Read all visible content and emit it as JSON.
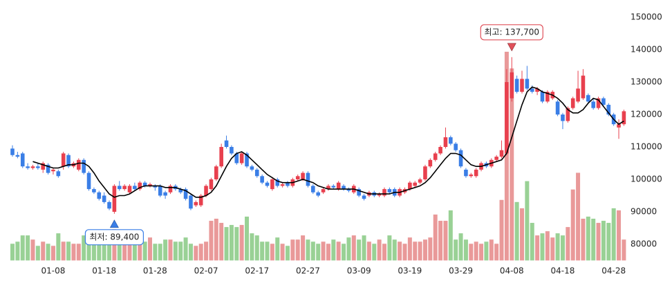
{
  "chart_data": {
    "type": "candlestick",
    "categories": [
      null,
      null,
      null,
      null,
      null,
      null,
      null,
      null,
      "01-08",
      null,
      null,
      null,
      null,
      null,
      null,
      null,
      null,
      null,
      "01-18",
      null,
      null,
      null,
      null,
      null,
      null,
      null,
      null,
      null,
      "01-28",
      null,
      null,
      null,
      null,
      null,
      null,
      null,
      null,
      null,
      "02-07",
      null,
      null,
      null,
      null,
      null,
      null,
      null,
      null,
      null,
      "02-17",
      null,
      null,
      null,
      null,
      null,
      null,
      null,
      null,
      null,
      "02-27",
      null,
      null,
      null,
      null,
      null,
      null,
      null,
      null,
      null,
      "03-09",
      null,
      null,
      null,
      null,
      null,
      null,
      null,
      null,
      null,
      "03-19",
      null,
      null,
      null,
      null,
      null,
      null,
      null,
      null,
      null,
      "03-29",
      null,
      null,
      null,
      null,
      null,
      null,
      null,
      null,
      null,
      "04-08",
      null,
      null,
      null,
      null,
      null,
      null,
      null,
      null,
      null,
      "04-18",
      null,
      null,
      null,
      null,
      null,
      null,
      null,
      null,
      null,
      "04-28",
      null,
      null
    ],
    "ohlc": [
      [
        109500,
        110500,
        107000,
        107500
      ],
      [
        107500,
        108500,
        106500,
        107000
      ],
      [
        108000,
        108500,
        103500,
        104000
      ],
      [
        104000,
        105000,
        103000,
        103500
      ],
      [
        103500,
        104500,
        103000,
        104000
      ],
      [
        104000,
        105000,
        103000,
        103500
      ],
      [
        103000,
        105500,
        102000,
        105000
      ],
      [
        104500,
        105000,
        101500,
        102000
      ],
      [
        102500,
        103500,
        101500,
        103000
      ],
      [
        102500,
        103000,
        100500,
        101000
      ],
      [
        104000,
        108500,
        103000,
        108000
      ],
      [
        107500,
        108000,
        103500,
        104000
      ],
      [
        104000,
        105500,
        103500,
        105000
      ],
      [
        103000,
        106500,
        102500,
        106000
      ],
      [
        106000,
        106500,
        101500,
        102000
      ],
      [
        102000,
        102500,
        96500,
        97000
      ],
      [
        97000,
        97500,
        95500,
        96000
      ],
      [
        96000,
        96500,
        93500,
        94000
      ],
      [
        95000,
        96000,
        92500,
        93000
      ],
      [
        93000,
        93500,
        90500,
        91000
      ],
      [
        90000,
        98500,
        89400,
        98000
      ],
      [
        98000,
        99500,
        96500,
        97000
      ],
      [
        97000,
        98500,
        96500,
        98000
      ],
      [
        96000,
        98500,
        95500,
        98000
      ],
      [
        98000,
        99000,
        96500,
        97000
      ],
      [
        97000,
        99500,
        96500,
        99000
      ],
      [
        99000,
        99500,
        97500,
        98000
      ],
      [
        98000,
        99000,
        97500,
        98500
      ],
      [
        98000,
        98500,
        96500,
        97500
      ],
      [
        98000,
        98500,
        94500,
        95000
      ],
      [
        96000,
        96500,
        94000,
        95000
      ],
      [
        96000,
        98500,
        95500,
        98000
      ],
      [
        98000,
        98500,
        96500,
        97000
      ],
      [
        97000,
        97500,
        95500,
        96000
      ],
      [
        97000,
        97500,
        93500,
        94000
      ],
      [
        95000,
        95500,
        90500,
        91000
      ],
      [
        92000,
        93500,
        91500,
        93000
      ],
      [
        92000,
        95500,
        91500,
        95000
      ],
      [
        95000,
        98500,
        94500,
        98000
      ],
      [
        97000,
        100500,
        96500,
        100000
      ],
      [
        100000,
        104500,
        99500,
        104000
      ],
      [
        104000,
        111000,
        103500,
        110000
      ],
      [
        112000,
        113500,
        109500,
        110000
      ],
      [
        110000,
        110500,
        107500,
        108000
      ],
      [
        108000,
        108500,
        104500,
        105000
      ],
      [
        105000,
        108500,
        104500,
        108000
      ],
      [
        108000,
        108500,
        103500,
        104000
      ],
      [
        104000,
        104500,
        102500,
        103000
      ],
      [
        103000,
        103500,
        100500,
        101000
      ],
      [
        101000,
        101500,
        98500,
        99000
      ],
      [
        99000,
        99500,
        97500,
        98000
      ],
      [
        97000,
        100500,
        96500,
        100000
      ],
      [
        100000,
        100500,
        97500,
        98000
      ],
      [
        98000,
        99000,
        97500,
        98500
      ],
      [
        99000,
        99500,
        97500,
        98000
      ],
      [
        98000,
        100500,
        97500,
        100000
      ],
      [
        100000,
        101500,
        99500,
        101000
      ],
      [
        100000,
        102500,
        99500,
        102000
      ],
      [
        102000,
        102500,
        97500,
        98000
      ],
      [
        98000,
        98500,
        95500,
        96000
      ],
      [
        96000,
        96500,
        94500,
        95000
      ],
      [
        96000,
        97500,
        95500,
        97000
      ],
      [
        97000,
        98500,
        96500,
        98000
      ],
      [
        98000,
        98500,
        97000,
        97500
      ],
      [
        97000,
        99500,
        96500,
        99000
      ],
      [
        98000,
        98500,
        96500,
        97000
      ],
      [
        97000,
        97500,
        96000,
        96500
      ],
      [
        96000,
        98500,
        95500,
        98000
      ],
      [
        97000,
        97500,
        94500,
        95000
      ],
      [
        95000,
        95500,
        93500,
        94000
      ],
      [
        95000,
        96500,
        94500,
        96000
      ],
      [
        96000,
        96500,
        94500,
        95000
      ],
      [
        95000,
        96000,
        94500,
        95500
      ],
      [
        95000,
        97500,
        94500,
        97000
      ],
      [
        97000,
        97500,
        95500,
        96000
      ],
      [
        97000,
        97500,
        94500,
        95000
      ],
      [
        95000,
        97500,
        94500,
        97000
      ],
      [
        96000,
        97500,
        95500,
        97000
      ],
      [
        97000,
        99500,
        96500,
        99000
      ],
      [
        98000,
        99500,
        97500,
        99000
      ],
      [
        99000,
        100500,
        98500,
        100000
      ],
      [
        100000,
        104500,
        99500,
        104000
      ],
      [
        104000,
        106500,
        103500,
        106000
      ],
      [
        106000,
        108500,
        105500,
        108000
      ],
      [
        108000,
        110500,
        107500,
        110000
      ],
      [
        110000,
        116000,
        109500,
        113000
      ],
      [
        113000,
        113500,
        110500,
        111000
      ],
      [
        111000,
        111500,
        108500,
        109000
      ],
      [
        109000,
        109500,
        103500,
        104000
      ],
      [
        103000,
        103500,
        100500,
        101000
      ],
      [
        101000,
        102000,
        100500,
        101500
      ],
      [
        101000,
        103500,
        100500,
        103000
      ],
      [
        103000,
        105500,
        102500,
        105000
      ],
      [
        105000,
        105500,
        103500,
        104000
      ],
      [
        104000,
        106500,
        103500,
        106000
      ],
      [
        106000,
        107500,
        105500,
        107000
      ],
      [
        107000,
        112000,
        106500,
        109000
      ],
      [
        108000,
        134000,
        107500,
        130000
      ],
      [
        125000,
        137700,
        124000,
        133000
      ],
      [
        131000,
        132000,
        126500,
        127000
      ],
      [
        127000,
        133500,
        126500,
        131000
      ],
      [
        131000,
        135000,
        127500,
        128000
      ],
      [
        128000,
        129000,
        126500,
        127000
      ],
      [
        127000,
        128500,
        126000,
        128000
      ],
      [
        127000,
        127500,
        123500,
        124000
      ],
      [
        124000,
        127500,
        123500,
        127000
      ],
      [
        125000,
        127500,
        124500,
        127000
      ],
      [
        124000,
        124500,
        119500,
        120000
      ],
      [
        120000,
        120500,
        115500,
        118000
      ],
      [
        118000,
        122500,
        117500,
        122000
      ],
      [
        122000,
        125500,
        121500,
        125000
      ],
      [
        124000,
        133500,
        123500,
        128000
      ],
      [
        125000,
        134000,
        124500,
        132000
      ],
      [
        126000,
        126500,
        123500,
        124000
      ],
      [
        124000,
        125000,
        121500,
        122000
      ],
      [
        122000,
        125500,
        121500,
        125000
      ],
      [
        125000,
        125500,
        122500,
        123000
      ],
      [
        123000,
        123500,
        119500,
        120000
      ],
      [
        120000,
        120500,
        116500,
        117000
      ],
      [
        116000,
        118500,
        112500,
        117000
      ],
      [
        117000,
        121500,
        116500,
        121000
      ]
    ],
    "ma": [
      null,
      null,
      null,
      null,
      105500,
      105000,
      104500,
      104000,
      103500,
      103500,
      104000,
      104500,
      104500,
      105000,
      105000,
      104000,
      102000,
      99500,
      97500,
      95500,
      94500,
      95000,
      95000,
      95500,
      96500,
      97500,
      98000,
      98000,
      98000,
      98000,
      97500,
      97500,
      97500,
      97000,
      96500,
      95500,
      94500,
      94500,
      95000,
      96000,
      98000,
      101000,
      104000,
      106500,
      108000,
      108500,
      107500,
      106000,
      104500,
      103000,
      101500,
      100500,
      99500,
      99000,
      99000,
      99000,
      99500,
      100000,
      99500,
      99000,
      98000,
      97500,
      97000,
      97000,
      97000,
      97000,
      97000,
      97000,
      96500,
      96000,
      95500,
      95500,
      95500,
      95500,
      95500,
      96000,
      96000,
      96500,
      97000,
      97500,
      98000,
      99000,
      100500,
      102500,
      104500,
      106500,
      108000,
      108000,
      107500,
      106000,
      104500,
      104000,
      104000,
      104500,
      105000,
      105500,
      106000,
      108000,
      113000,
      118000,
      123000,
      127000,
      128500,
      128000,
      127000,
      126500,
      126000,
      125000,
      123500,
      121500,
      120500,
      120500,
      121500,
      123500,
      125000,
      124500,
      122500,
      120500,
      118500,
      117000,
      118000
    ],
    "volume": [
      8,
      9,
      12,
      12,
      10,
      7,
      9,
      8,
      7,
      13,
      9,
      9,
      8,
      8,
      12,
      10,
      8,
      10,
      13,
      12,
      15,
      11,
      8,
      8,
      10,
      10,
      9,
      11,
      8,
      8,
      10,
      10,
      9,
      9,
      11,
      8,
      7,
      8,
      9,
      19,
      20,
      18,
      16,
      17,
      16,
      17,
      21,
      13,
      12,
      9,
      9,
      8,
      11,
      8,
      7,
      10,
      10,
      12,
      10,
      9,
      8,
      9,
      8,
      10,
      9,
      8,
      11,
      12,
      10,
      12,
      9,
      8,
      10,
      8,
      12,
      10,
      9,
      8,
      11,
      9,
      9,
      10,
      11,
      22,
      19,
      19,
      24,
      10,
      13,
      10,
      8,
      9,
      8,
      9,
      10,
      8,
      29,
      100,
      92,
      28,
      25,
      38,
      18,
      12,
      13,
      14,
      11,
      13,
      12,
      16,
      34,
      42,
      20,
      21,
      20,
      18,
      19,
      18,
      25,
      24,
      10
    ],
    "ylim": [
      75000,
      155000
    ],
    "yticks": [
      80000,
      90000,
      100000,
      110000,
      120000,
      130000,
      140000,
      150000
    ],
    "y2lim": [
      0,
      100
    ],
    "up_color": "#e8404e",
    "down_color": "#3a7ee6",
    "volume_up_color": "#e89394",
    "volume_down_color": "#93cf8f",
    "ma_color": "#000000",
    "high_label": "최고: 137,700",
    "high_color": "#e0505a",
    "low_label": "최저: 89,400",
    "low_color": "#3a7ee6"
  }
}
